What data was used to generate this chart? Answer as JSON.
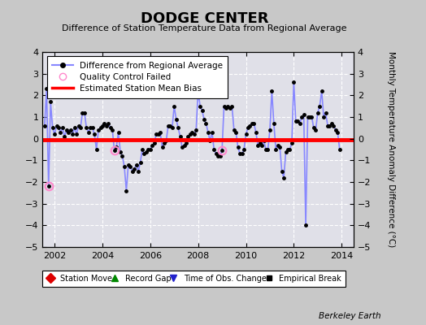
{
  "title": "DODGE CENTER",
  "subtitle": "Difference of Station Temperature Data from Regional Average",
  "ylabel": "Monthly Temperature Anomaly Difference (°C)",
  "xlabel_credit": "Berkeley Earth",
  "bias_value": -0.05,
  "ylim": [
    -5,
    4
  ],
  "xlim": [
    2001.5,
    2014.5
  ],
  "xticks": [
    2002,
    2004,
    2006,
    2008,
    2010,
    2012,
    2014
  ],
  "yticks": [
    -5,
    -4,
    -3,
    -2,
    -1,
    0,
    1,
    2,
    3,
    4
  ],
  "line_color": "#8888FF",
  "dot_color": "#000000",
  "bias_color": "#FF0000",
  "fig_bg_color": "#C8C8C8",
  "plot_bg_color": "#E0E0E8",
  "qc_failed_points": [
    [
      2001.75,
      -2.2
    ],
    [
      2004.5,
      -0.55
    ],
    [
      2009.0,
      -0.55
    ]
  ],
  "data": [
    [
      2001.583,
      0.6
    ],
    [
      2001.667,
      2.3
    ],
    [
      2001.75,
      -2.2
    ],
    [
      2001.833,
      1.7
    ],
    [
      2001.917,
      0.5
    ],
    [
      2002.0,
      0.2
    ],
    [
      2002.083,
      0.6
    ],
    [
      2002.167,
      0.5
    ],
    [
      2002.25,
      0.3
    ],
    [
      2002.333,
      0.5
    ],
    [
      2002.417,
      0.1
    ],
    [
      2002.5,
      0.4
    ],
    [
      2002.583,
      0.3
    ],
    [
      2002.667,
      0.4
    ],
    [
      2002.75,
      0.2
    ],
    [
      2002.833,
      0.5
    ],
    [
      2002.917,
      0.2
    ],
    [
      2003.0,
      0.6
    ],
    [
      2003.083,
      0.5
    ],
    [
      2003.167,
      1.2
    ],
    [
      2003.25,
      1.2
    ],
    [
      2003.333,
      0.5
    ],
    [
      2003.417,
      0.3
    ],
    [
      2003.5,
      0.5
    ],
    [
      2003.583,
      0.5
    ],
    [
      2003.667,
      0.2
    ],
    [
      2003.75,
      -0.5
    ],
    [
      2003.833,
      0.4
    ],
    [
      2003.917,
      0.5
    ],
    [
      2004.0,
      0.6
    ],
    [
      2004.083,
      0.7
    ],
    [
      2004.167,
      0.6
    ],
    [
      2004.25,
      0.7
    ],
    [
      2004.333,
      0.5
    ],
    [
      2004.417,
      0.4
    ],
    [
      2004.5,
      -0.55
    ],
    [
      2004.583,
      -0.4
    ],
    [
      2004.667,
      0.3
    ],
    [
      2004.75,
      -0.6
    ],
    [
      2004.833,
      -0.8
    ],
    [
      2004.917,
      -1.3
    ],
    [
      2005.0,
      -2.4
    ],
    [
      2005.083,
      -1.2
    ],
    [
      2005.167,
      -1.3
    ],
    [
      2005.25,
      -1.5
    ],
    [
      2005.333,
      -1.4
    ],
    [
      2005.417,
      -1.2
    ],
    [
      2005.5,
      -1.5
    ],
    [
      2005.583,
      -1.1
    ],
    [
      2005.667,
      -0.5
    ],
    [
      2005.75,
      -0.7
    ],
    [
      2005.833,
      -0.6
    ],
    [
      2005.917,
      -0.5
    ],
    [
      2006.0,
      -0.5
    ],
    [
      2006.083,
      -0.3
    ],
    [
      2006.167,
      -0.2
    ],
    [
      2006.25,
      0.2
    ],
    [
      2006.333,
      0.2
    ],
    [
      2006.417,
      0.3
    ],
    [
      2006.5,
      -0.4
    ],
    [
      2006.583,
      -0.2
    ],
    [
      2006.667,
      -0.1
    ],
    [
      2006.75,
      0.6
    ],
    [
      2006.833,
      0.6
    ],
    [
      2006.917,
      0.5
    ],
    [
      2007.0,
      1.5
    ],
    [
      2007.083,
      0.9
    ],
    [
      2007.167,
      0.5
    ],
    [
      2007.25,
      0.1
    ],
    [
      2007.333,
      -0.4
    ],
    [
      2007.417,
      -0.3
    ],
    [
      2007.5,
      -0.2
    ],
    [
      2007.583,
      0.1
    ],
    [
      2007.667,
      0.2
    ],
    [
      2007.75,
      0.3
    ],
    [
      2007.833,
      0.2
    ],
    [
      2007.917,
      0.4
    ],
    [
      2008.0,
      2.2
    ],
    [
      2008.083,
      1.5
    ],
    [
      2008.167,
      1.3
    ],
    [
      2008.25,
      0.9
    ],
    [
      2008.333,
      0.7
    ],
    [
      2008.417,
      0.3
    ],
    [
      2008.5,
      -0.1
    ],
    [
      2008.583,
      0.3
    ],
    [
      2008.667,
      -0.5
    ],
    [
      2008.75,
      -0.7
    ],
    [
      2008.833,
      -0.8
    ],
    [
      2008.917,
      -0.8
    ],
    [
      2009.0,
      -0.55
    ],
    [
      2009.083,
      1.5
    ],
    [
      2009.167,
      1.4
    ],
    [
      2009.25,
      1.5
    ],
    [
      2009.333,
      1.4
    ],
    [
      2009.417,
      1.5
    ],
    [
      2009.5,
      0.4
    ],
    [
      2009.583,
      0.3
    ],
    [
      2009.667,
      -0.4
    ],
    [
      2009.75,
      -0.7
    ],
    [
      2009.833,
      -0.7
    ],
    [
      2009.917,
      -0.5
    ],
    [
      2010.0,
      0.2
    ],
    [
      2010.083,
      0.5
    ],
    [
      2010.167,
      0.6
    ],
    [
      2010.25,
      0.7
    ],
    [
      2010.333,
      0.7
    ],
    [
      2010.417,
      0.3
    ],
    [
      2010.5,
      -0.3
    ],
    [
      2010.583,
      -0.2
    ],
    [
      2010.667,
      -0.3
    ],
    [
      2010.75,
      -0.1
    ],
    [
      2010.833,
      -0.5
    ],
    [
      2010.917,
      -0.5
    ],
    [
      2011.0,
      0.4
    ],
    [
      2011.083,
      2.2
    ],
    [
      2011.167,
      0.7
    ],
    [
      2011.25,
      -0.5
    ],
    [
      2011.333,
      -0.3
    ],
    [
      2011.417,
      -0.4
    ],
    [
      2011.5,
      -1.5
    ],
    [
      2011.583,
      -1.8
    ],
    [
      2011.667,
      -0.6
    ],
    [
      2011.75,
      -0.5
    ],
    [
      2011.833,
      -0.5
    ],
    [
      2011.917,
      -0.2
    ],
    [
      2012.0,
      2.6
    ],
    [
      2012.083,
      0.8
    ],
    [
      2012.167,
      0.8
    ],
    [
      2012.25,
      0.7
    ],
    [
      2012.333,
      1.0
    ],
    [
      2012.417,
      1.1
    ],
    [
      2012.5,
      -4.0
    ],
    [
      2012.583,
      1.0
    ],
    [
      2012.667,
      1.0
    ],
    [
      2012.75,
      1.0
    ],
    [
      2012.833,
      0.5
    ],
    [
      2012.917,
      0.4
    ],
    [
      2013.0,
      1.2
    ],
    [
      2013.083,
      1.5
    ],
    [
      2013.167,
      2.2
    ],
    [
      2013.25,
      1.0
    ],
    [
      2013.333,
      1.2
    ],
    [
      2013.417,
      0.6
    ],
    [
      2013.5,
      0.6
    ],
    [
      2013.583,
      0.7
    ],
    [
      2013.667,
      0.6
    ],
    [
      2013.75,
      0.4
    ],
    [
      2013.833,
      0.3
    ],
    [
      2013.917,
      -0.5
    ]
  ]
}
